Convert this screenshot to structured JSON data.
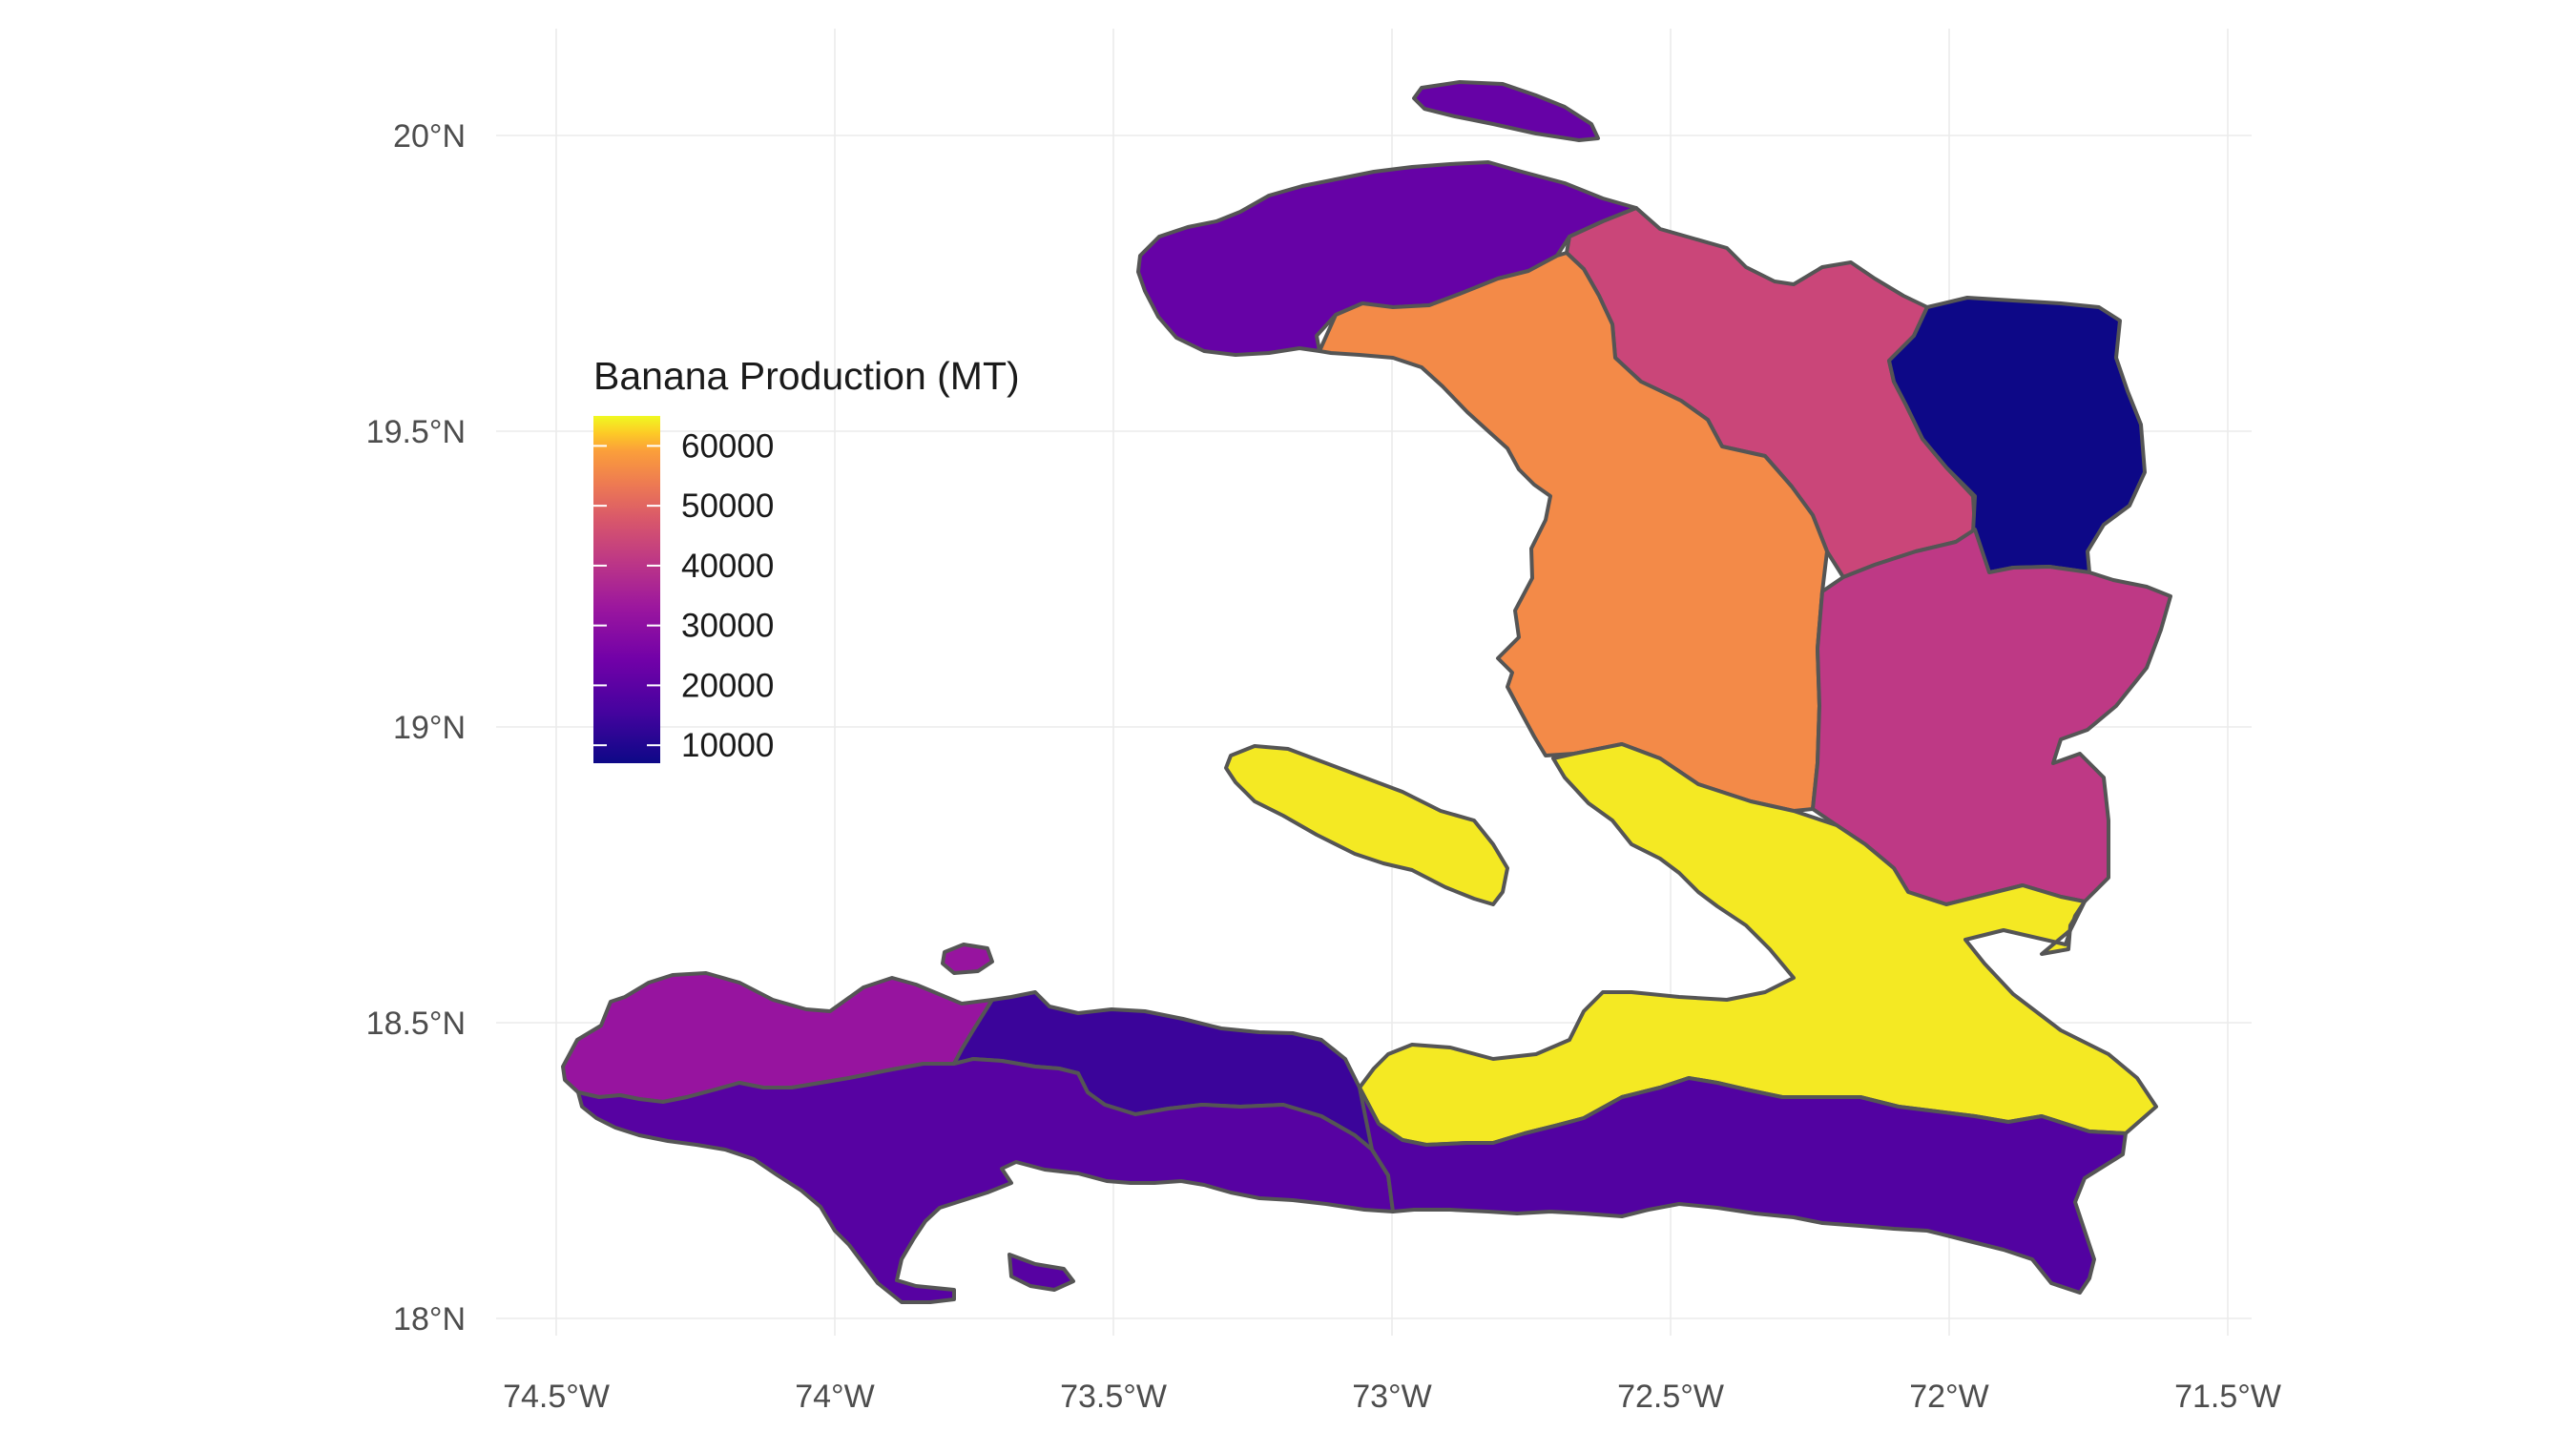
{
  "map": {
    "legend": {
      "title": "Banana Production (MT)",
      "labels": [
        "60000",
        "50000",
        "40000",
        "30000",
        "20000",
        "10000"
      ]
    },
    "x_ticks": [
      "74.5°W",
      "74°W",
      "73.5°W",
      "73°W",
      "72.5°W",
      "72°W",
      "71.5°W"
    ],
    "y_ticks": [
      "20°N",
      "19.5°N",
      "19°N",
      "18.5°N",
      "18°N"
    ],
    "colors": {
      "low": "#0d0887",
      "high": "#f0f921",
      "outline": "#555555"
    }
  },
  "chart_data": {
    "type": "choropleth",
    "title": "",
    "legend_title": "Banana Production (MT)",
    "x_ticks": [
      "74.5°W",
      "74°W",
      "73.5°W",
      "73°W",
      "72.5°W",
      "72°W",
      "71.5°W"
    ],
    "y_ticks": [
      "20°N",
      "19.5°N",
      "19°N",
      "18.5°N",
      "18°N"
    ],
    "xlim": [
      -74.6,
      -71.5
    ],
    "ylim": [
      17.95,
      20.15
    ],
    "scale_range": [
      7000,
      65000
    ],
    "legend_ticks": [
      60000,
      50000,
      40000,
      30000,
      20000,
      10000
    ],
    "grid": true,
    "legend_position": "inside-left",
    "regions": [
      {
        "id": "north-west",
        "value": 22000
      },
      {
        "id": "north",
        "value": 44000
      },
      {
        "id": "north-east",
        "value": 7000
      },
      {
        "id": "artibonite",
        "value": 56000
      },
      {
        "id": "centre",
        "value": 41000
      },
      {
        "id": "ouest",
        "value": 64000
      },
      {
        "id": "grande-anse",
        "value": 32000
      },
      {
        "id": "nippes",
        "value": 14000
      },
      {
        "id": "sud",
        "value": 19000
      },
      {
        "id": "sud-est",
        "value": 18000
      },
      {
        "id": "tortuga",
        "value": 22000
      },
      {
        "id": "gonave",
        "value": 64000
      }
    ]
  }
}
